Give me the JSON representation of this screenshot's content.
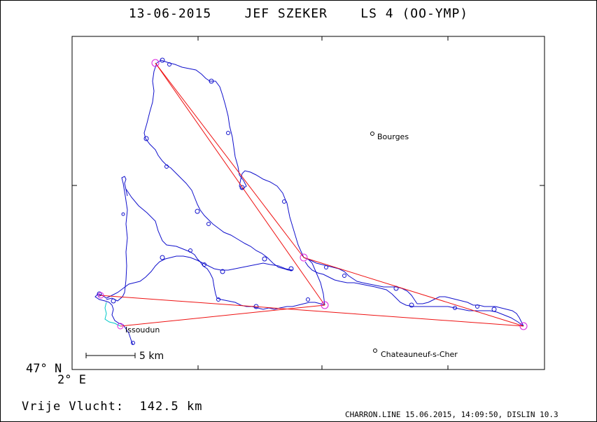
{
  "title": "13-06-2015    JEF SZEKER    LS 4 (OO-YMP)",
  "axes": {
    "lat_label": "47° N",
    "lon_label": "2° E"
  },
  "scale_bar": {
    "label": "5 km"
  },
  "distance": {
    "label": "Vrije Vlucht:",
    "value": "142.5 km"
  },
  "footer": "CHARRON.LINE 15.06.2015, 14:09:50, DISLIN 10.3",
  "cities": {
    "bourges": "Bourges",
    "issoudun": "Issoudun",
    "chateauneuf": "Chateauneuf-s-Cher"
  },
  "colors": {
    "track": "#1010cc",
    "task": "#ee1111",
    "turnpoint": "#dd22dd",
    "takeoff_leg": "#00c8c8"
  }
}
